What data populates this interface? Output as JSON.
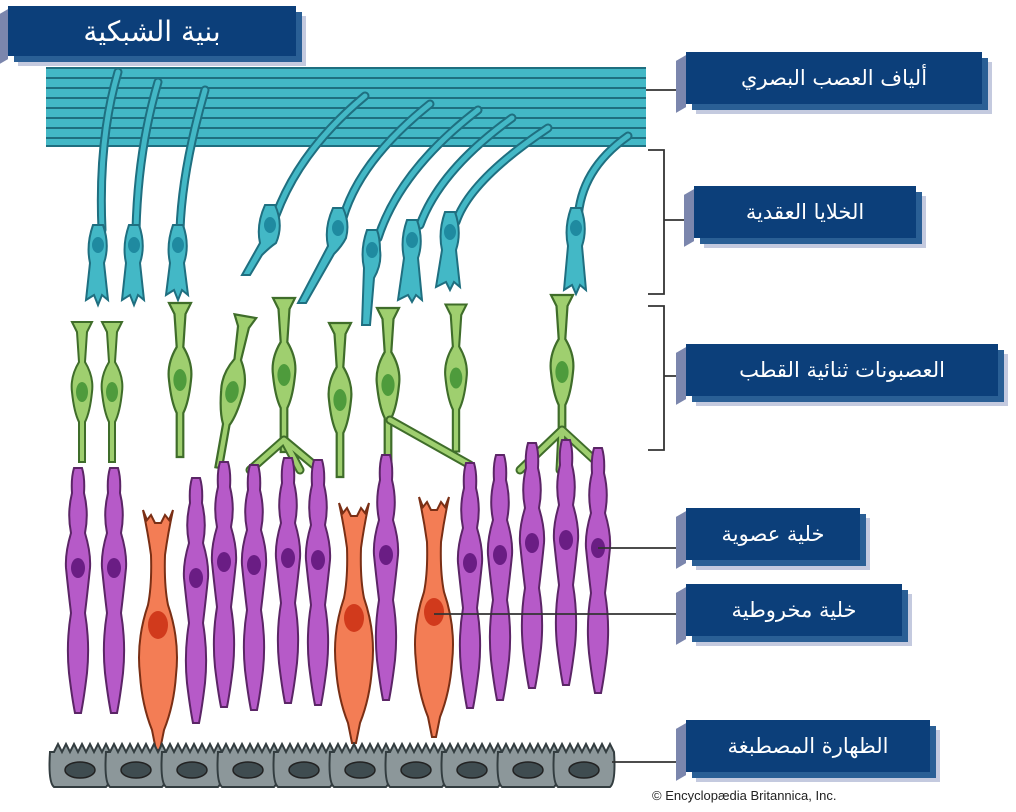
{
  "title": "بنية الشبكية",
  "labels": {
    "optic_nerve_fibers": "ألياف العصب البصري",
    "ganglion_cells": "الخلايا العقدية",
    "bipolar_neurons": "العصبونات ثنائية القطب",
    "rod_cell": "خلية عصوية",
    "cone_cell": "خلية مخروطية",
    "pigmented_epithelium": "الظهارة المصطبغة"
  },
  "copyright": "© Encyclopædia Britannica, Inc.",
  "colors": {
    "label_bg": "#0c3f7a",
    "nerve_fiber": "#43b8c6",
    "bipolar": "#9fcf6f",
    "rod": "#b65ac8",
    "cone": "#f37d55",
    "epithelium": "#8c979a"
  }
}
